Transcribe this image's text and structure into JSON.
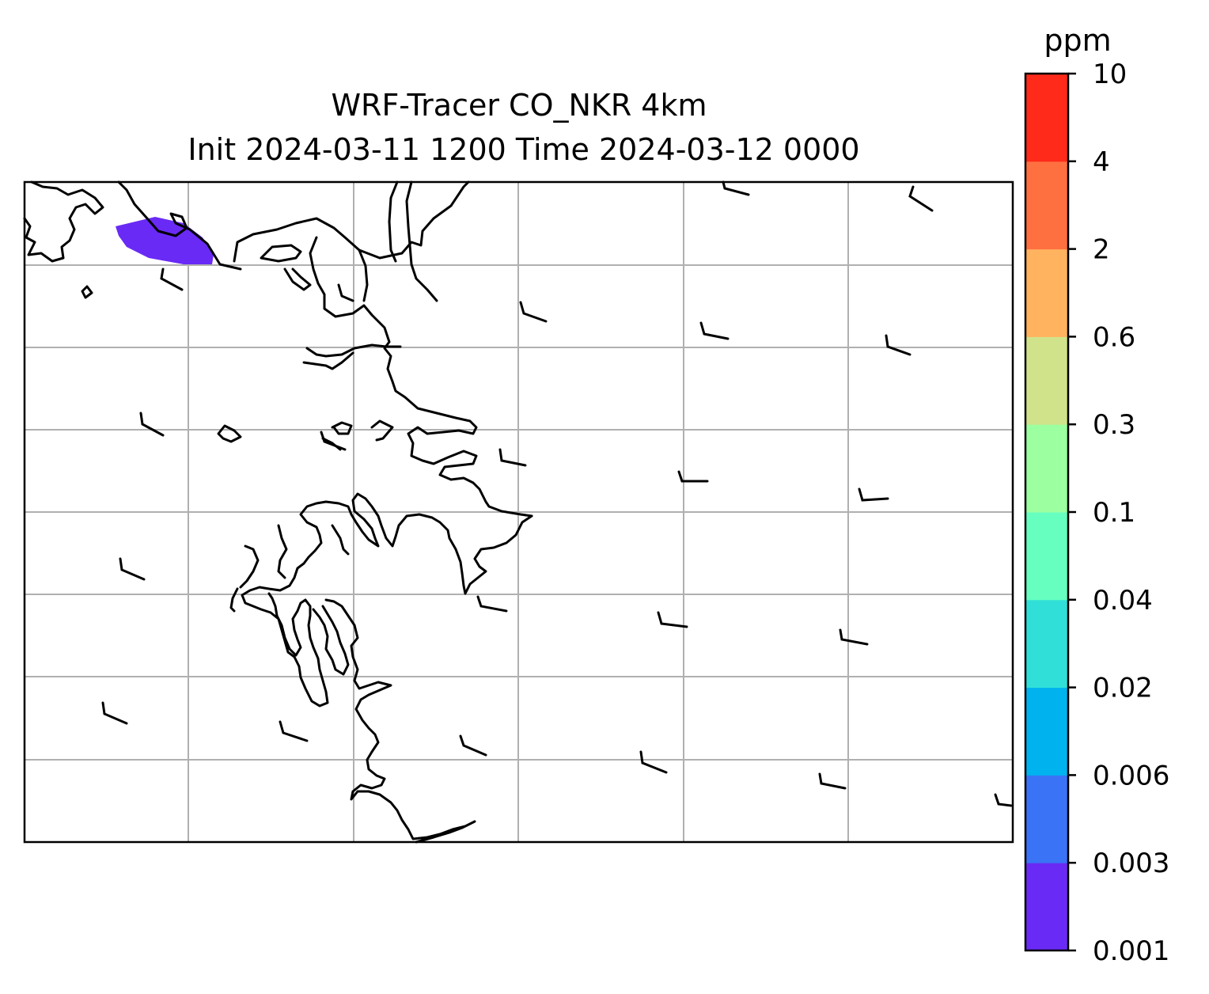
{
  "title": {
    "line1": "WRF-Tracer CO_NKR 4km",
    "line2": "Init 2024-03-11 1200 Time 2024-03-12 0000"
  },
  "colorbar": {
    "unit": "ppm",
    "levels": [
      "0.001",
      "0.003",
      "0.006",
      "0.02",
      "0.04",
      "0.1",
      "0.3",
      "0.6",
      "2",
      "4",
      "10"
    ],
    "colors": [
      "#6a2af5",
      "#3a73f5",
      "#00b3ee",
      "#30e0d8",
      "#66ffc0",
      "#9cffa0",
      "#d0e38a",
      "#ffb35f",
      "#ff7040",
      "#ff2a1a"
    ]
  },
  "plume": {
    "level": "0.001",
    "color": "#6a2af5"
  },
  "wind_barbs": {
    "style": "short flag barbs, black",
    "count": 24
  },
  "grid": {
    "visible": true,
    "color": "#b0b0b0"
  }
}
